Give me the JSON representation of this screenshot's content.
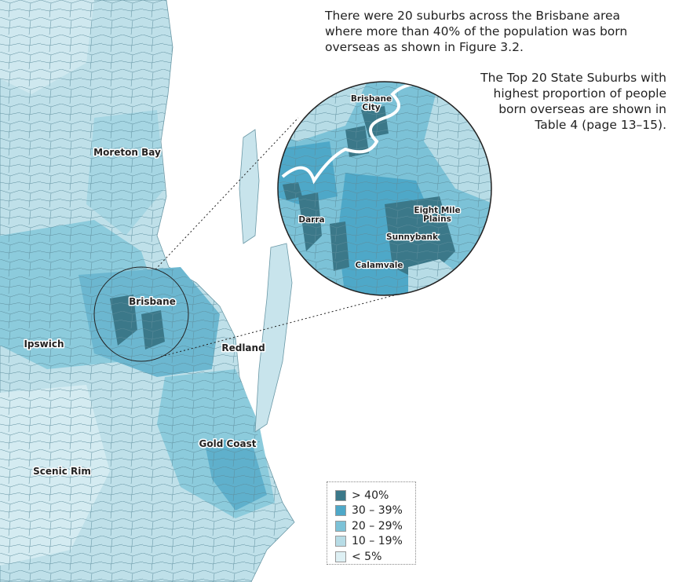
{
  "text": {
    "paragraph_1": [
      "There were 20 suburbs across the Brisbane area",
      "where more than 40% of the population was born",
      "overseas as shown in Figure 3.2."
    ],
    "paragraph_2": [
      "The Top 20 State Suburbs with",
      "highest proportion of people",
      "born overseas are shown in",
      "Table 4 (page 13–15)."
    ]
  },
  "map": {
    "labels": [
      "Moreton Bay",
      "Brisbane",
      "Ipswich",
      "Redland",
      "Gold Coast",
      "Scenic Rim"
    ],
    "inset_labels": [
      "Brisbane",
      "City",
      "Darra",
      "Eight Mile",
      "Plains",
      "Sunnybank",
      "Calamvale"
    ]
  },
  "legend": {
    "entries": [
      {
        "label": "> 40%",
        "color": "#3b7889"
      },
      {
        "label": "30 – 39%",
        "color": "#4ea8c8"
      },
      {
        "label": "20 – 29%",
        "color": "#7cc2d7"
      },
      {
        "label": "10 – 19%",
        "color": "#b7dce6"
      },
      {
        "label": "< 5%",
        "color": "#def0f4"
      }
    ]
  }
}
